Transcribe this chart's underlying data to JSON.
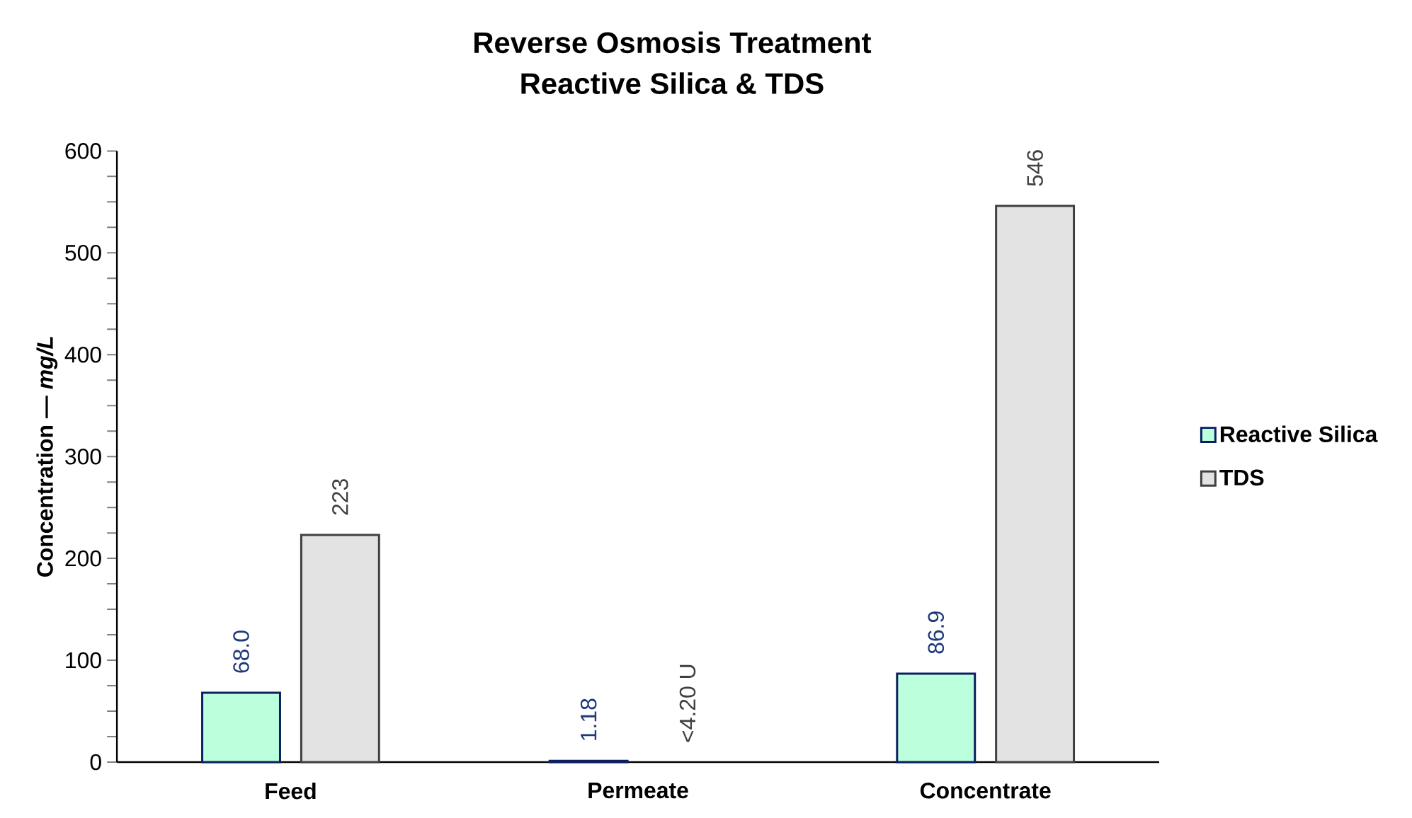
{
  "chart_data": {
    "type": "bar",
    "title": "Reverse Osmosis Treatment",
    "subtitle": "Reactive Silica & TDS",
    "ylabel": "Concentration — *mg/L*",
    "categories": [
      "Feed",
      "Permeate",
      "Concentrate"
    ],
    "series": [
      {
        "name": "Reactive Silica",
        "color": "#bbffdd",
        "values": [
          68.0,
          1.18,
          86.9
        ],
        "value_labels": [
          "68.0",
          "1.18",
          "86.9"
        ]
      },
      {
        "name": "TDS",
        "color": "#e3e3e3",
        "values": [
          223,
          null,
          546
        ],
        "value_labels": [
          "223",
          "<4.20 U",
          "546"
        ]
      }
    ],
    "ylim": [
      0,
      600
    ],
    "yticks": [
      0,
      {
        "value": 25,
        "label": null
      },
      {
        "value": 50,
        "label": null
      },
      {
        "value": 75,
        "label": null
      },
      100,
      {
        "value": 125,
        "label": null
      },
      {
        "value": 150,
        "label": null
      },
      {
        "value": 175,
        "label": null
      },
      200,
      {
        "value": 225,
        "label": null
      },
      {
        "value": 250,
        "label": null
      },
      {
        "value": 275,
        "label": null
      },
      300,
      {
        "value": 325,
        "label": null
      },
      {
        "value": 350,
        "label": null
      },
      {
        "value": 375,
        "label": null
      },
      400,
      {
        "value": 425,
        "label": null
      },
      {
        "value": 450,
        "label": null
      },
      {
        "value": 475,
        "label": null
      },
      500,
      {
        "value": 525,
        "label": null
      },
      {
        "value": 550,
        "label": null
      },
      {
        "value": 575,
        "label": null
      },
      600
    ],
    "legend": "right"
  }
}
